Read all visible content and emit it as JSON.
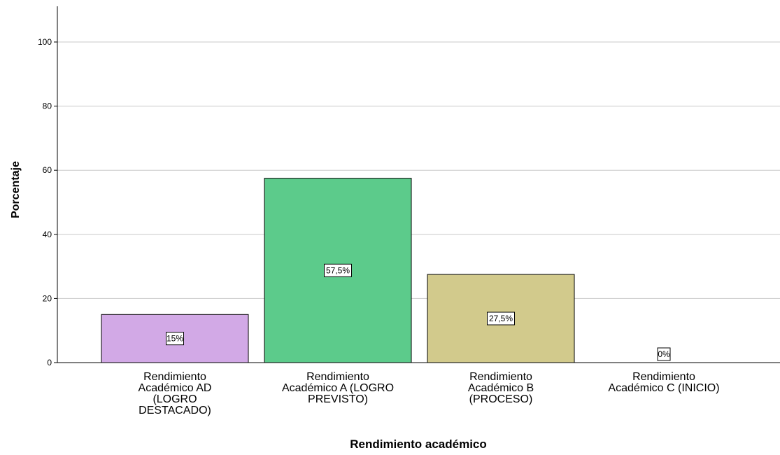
{
  "chart_data": {
    "type": "bar",
    "title": "",
    "xlabel": "Rendimiento académico",
    "ylabel": "Porcentaje",
    "ylim": [
      0,
      110
    ],
    "yticks": [
      0,
      20,
      40,
      60,
      80,
      100
    ],
    "grid": true,
    "categories": [
      "Rendimiento Académico AD (LOGRO DESTACADO)",
      "Rendimiento Académico A (LOGRO PREVISTO)",
      "Rendimiento Académico B (PROCESO)",
      "Rendimiento Académico C (INICIO)"
    ],
    "category_lines": [
      [
        "Rendimiento",
        "Académico AD",
        "(LOGRO",
        "DESTACADO)"
      ],
      [
        "Rendimiento",
        "Académico A (LOGRO",
        "PREVISTO)"
      ],
      [
        "Rendimiento",
        "Académico B",
        "(PROCESO)"
      ],
      [
        "Rendimiento",
        "Académico C (INICIO)"
      ]
    ],
    "values": [
      15,
      57.5,
      27.5,
      0
    ],
    "data_labels": [
      "15%",
      "57,5%",
      "27,5%",
      "0%"
    ],
    "colors": [
      "#d2a9e6",
      "#5ccb8b",
      "#d2ca8c",
      "#bfbfbf"
    ]
  }
}
